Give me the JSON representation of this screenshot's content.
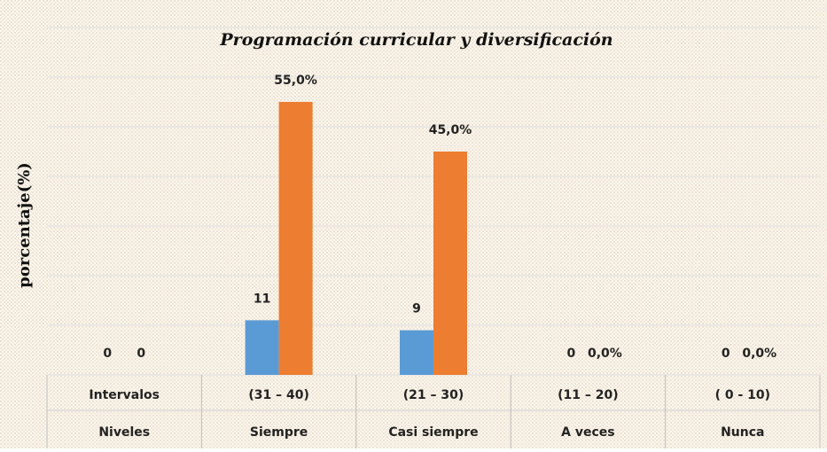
{
  "chart_data": {
    "type": "bar",
    "title": "Programación curricular y diversificación",
    "y_label": "porcentaje(%)",
    "categories": [
      "Intervalos",
      "(31 – 40)",
      "(21 – 30)",
      "(11 – 20)",
      "( 0 - 10)"
    ],
    "levels": [
      "Niveles",
      "Siempre",
      "Casi siempre",
      "A veces",
      "Nunca"
    ],
    "series": [
      {
        "color": "#5b9bd5",
        "values": [
          0,
          11,
          9,
          0,
          0
        ]
      },
      {
        "color": "#ed7d31",
        "values": [
          0,
          55,
          45,
          0,
          0
        ],
        "value_labels": [
          "0",
          "55,0%",
          "45,0%",
          "0,0%",
          "0,0%"
        ]
      }
    ],
    "ylim": [
      0,
      70
    ],
    "yticks": [
      0,
      10,
      20,
      30,
      40,
      50,
      60,
      70
    ],
    "grid": true
  }
}
